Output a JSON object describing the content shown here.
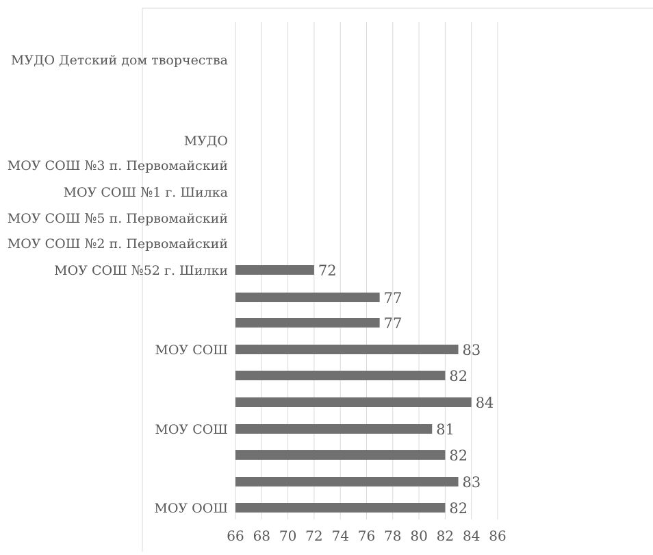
{
  "chart_data": {
    "type": "bar",
    "orientation": "horizontal",
    "title": "",
    "xlabel": "",
    "ylabel": "",
    "xlim": [
      66,
      86
    ],
    "x_ticks": [
      "66",
      "68",
      "70",
      "72",
      "74",
      "76",
      "78",
      "80",
      "82",
      "84",
      "86"
    ],
    "grid": true,
    "legend": "none",
    "bar_color": "#707070",
    "gridline_color": "#d9d9d9",
    "categories_top_to_bottom": [
      {
        "label": "МУДО Детский дом творчества",
        "value": null
      },
      {
        "label": "МУДО",
        "value": null
      },
      {
        "label": "МОУ СОШ №3 п. Первомайский",
        "value": null
      },
      {
        "label": "МОУ СОШ №1 г. Шилка",
        "value": null
      },
      {
        "label": "МОУ СОШ №5 п. Первомайский",
        "value": null
      },
      {
        "label": "МОУ СОШ №2 п. Первомайский",
        "value": null
      },
      {
        "label": "МОУ СОШ №52 г. Шилки",
        "value": 72
      },
      {
        "label": "",
        "value": 77
      },
      {
        "label": "",
        "value": 77
      },
      {
        "label": "МОУ СОШ",
        "value": 83
      },
      {
        "label": "",
        "value": 82
      },
      {
        "label": "",
        "value": 84
      },
      {
        "label": "МОУ СОШ",
        "value": 81
      },
      {
        "label": "",
        "value": 82
      },
      {
        "label": "",
        "value": 83
      },
      {
        "label": "МОУ ООШ",
        "value": 82
      }
    ],
    "data_labels": [
      "72",
      "77",
      "77",
      "83",
      "82",
      "84",
      "81",
      "82",
      "83",
      "82"
    ]
  }
}
